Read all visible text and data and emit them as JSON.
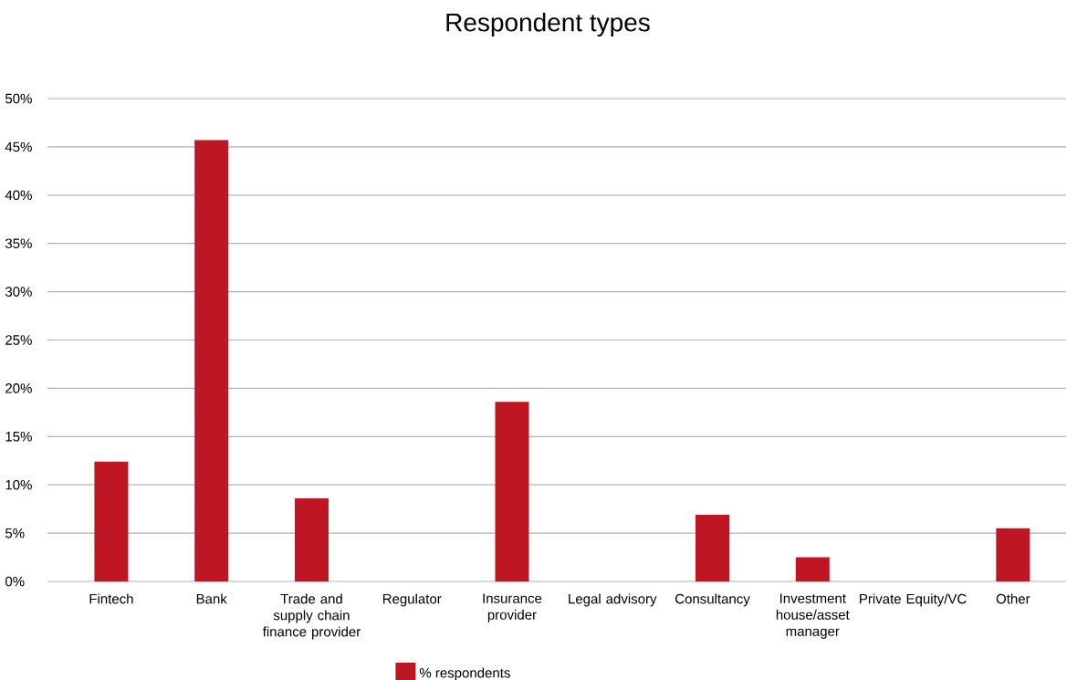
{
  "chart_data": {
    "type": "bar",
    "title": "Respondent types",
    "categories": [
      "Fintech",
      "Bank",
      "Trade and supply chain finance provider",
      "Regulator",
      "Insurance provider",
      "Legal advisory",
      "Consultancy",
      "Investment house/asset manager",
      "Private Equity/VC",
      "Other"
    ],
    "series": [
      {
        "name": "% respondents",
        "color": "#be1622",
        "values": [
          12.4,
          45.7,
          8.6,
          0,
          18.6,
          0,
          6.9,
          2.5,
          0,
          5.5
        ]
      }
    ],
    "ylim": [
      0,
      50
    ],
    "yticks": [
      {
        "value": 0,
        "label": "0%"
      },
      {
        "value": 5,
        "label": "5%"
      },
      {
        "value": 10,
        "label": "10%"
      },
      {
        "value": 15,
        "label": "15%"
      },
      {
        "value": 20,
        "label": "20%"
      },
      {
        "value": 25,
        "label": "25%"
      },
      {
        "value": 30,
        "label": "30%"
      },
      {
        "value": 35,
        "label": "35%"
      },
      {
        "value": 40,
        "label": "40%"
      },
      {
        "value": 45,
        "label": "45%"
      },
      {
        "value": 50,
        "label": "50%"
      }
    ],
    "grid": "y",
    "legend": "bottom"
  }
}
